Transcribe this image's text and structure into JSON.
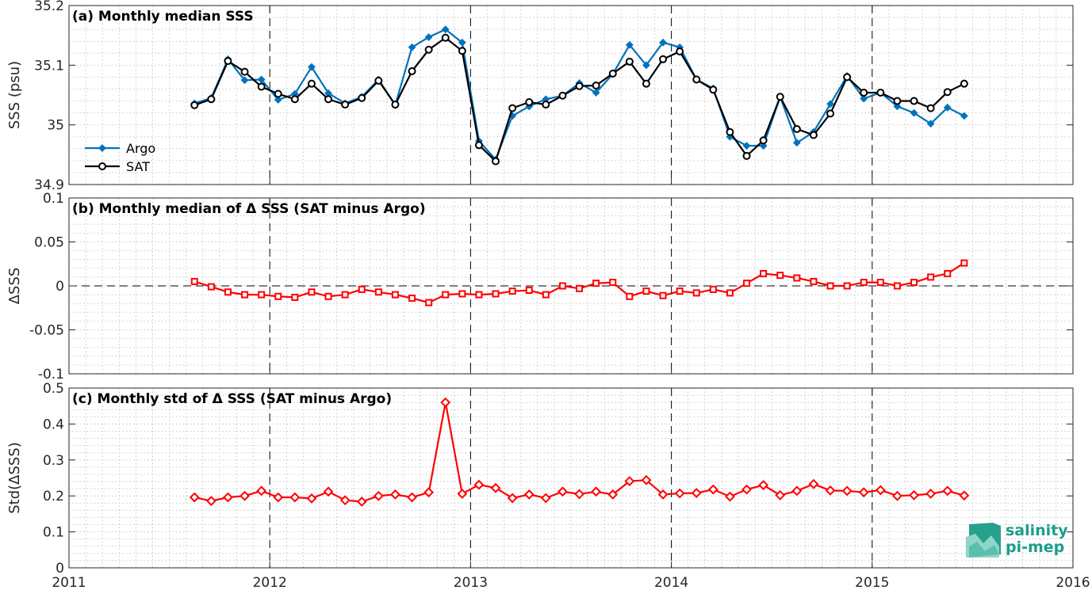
{
  "chart_data": [
    {
      "type": "line",
      "title": "(a) Monthly median SSS",
      "ylabel": "SSS (psu)",
      "xlim": [
        2011,
        2016
      ],
      "ylim": [
        34.9,
        35.2
      ],
      "yticks": [
        34.9,
        35,
        35.1,
        35.2
      ],
      "ytick_labels": [
        "34.9",
        "35",
        "35.1",
        "35.2"
      ],
      "grid": true,
      "legend": "bottom-left",
      "series": [
        {
          "name": "Argo",
          "color": "#0072bd",
          "marker": "diamond",
          "values": [
            35.036,
            35.045,
            35.11,
            35.075,
            35.076,
            35.042,
            35.052,
            35.097,
            35.053,
            35.036,
            35.047,
            35.076,
            35.033,
            35.13,
            35.147,
            35.16,
            35.138,
            34.973,
            34.942,
            35.015,
            35.031,
            35.043,
            35.049,
            35.07,
            35.054,
            35.085,
            35.134,
            35.1,
            35.138,
            35.13,
            35.076,
            35.061,
            34.98,
            34.965,
            34.965,
            35.047,
            34.97,
            34.988,
            35.035,
            35.082,
            35.044,
            35.054,
            35.031,
            35.02,
            35.002,
            35.029,
            35.015
          ]
        },
        {
          "name": "SAT",
          "color": "#000000",
          "marker": "circle",
          "values": [
            35.033,
            35.043,
            35.107,
            35.089,
            35.064,
            35.052,
            35.043,
            35.069,
            35.043,
            35.034,
            35.045,
            35.074,
            35.034,
            35.09,
            35.126,
            35.146,
            35.124,
            34.966,
            34.939,
            35.028,
            35.038,
            35.034,
            35.049,
            35.065,
            35.066,
            35.086,
            35.106,
            35.069,
            35.11,
            35.123,
            35.076,
            35.059,
            34.988,
            34.948,
            34.974,
            35.047,
            34.993,
            34.983,
            35.019,
            35.08,
            35.054,
            35.054,
            35.04,
            35.04,
            35.028,
            35.055,
            35.069
          ]
        }
      ]
    },
    {
      "type": "line",
      "title": "(b) Monthly median of Δ SSS (SAT minus Argo)",
      "ylabel": "ΔSSS",
      "xlim": [
        2011,
        2016
      ],
      "ylim": [
        -0.1,
        0.1
      ],
      "yticks": [
        -0.1,
        -0.05,
        0,
        0.05,
        0.1
      ],
      "ytick_labels": [
        "-0.1",
        "-0.05",
        "0",
        "0.05",
        "0.1"
      ],
      "grid": true,
      "reference_line": 0,
      "series": [
        {
          "name": "",
          "color": "#ff0000",
          "marker": "square",
          "values": [
            0.005,
            -0.001,
            -0.007,
            -0.01,
            -0.01,
            -0.012,
            -0.013,
            -0.007,
            -0.012,
            -0.01,
            -0.004,
            -0.007,
            -0.01,
            -0.014,
            -0.019,
            -0.01,
            -0.009,
            -0.01,
            -0.009,
            -0.006,
            -0.005,
            -0.01,
            0.0,
            -0.003,
            0.003,
            0.004,
            -0.012,
            -0.006,
            -0.011,
            -0.006,
            -0.008,
            -0.004,
            -0.008,
            0.003,
            0.014,
            0.012,
            0.009,
            0.005,
            0.0,
            0.0,
            0.004,
            0.004,
            0.0,
            0.004,
            0.01,
            0.014,
            0.026
          ]
        }
      ]
    },
    {
      "type": "line",
      "title": "(c) Monthly std of Δ SSS (SAT minus Argo)",
      "ylabel": "Std(ΔSSS)",
      "xlim": [
        2011,
        2016
      ],
      "ylim": [
        0,
        0.5
      ],
      "yticks": [
        0,
        0.1,
        0.2,
        0.3,
        0.4,
        0.5
      ],
      "ytick_labels": [
        "0",
        "0.1",
        "0.2",
        "0.3",
        "0.4",
        "0.5"
      ],
      "xticks": [
        2011,
        2012,
        2013,
        2014,
        2015,
        2016
      ],
      "xtick_labels": [
        "2011",
        "2012",
        "2013",
        "2014",
        "2015",
        "2016"
      ],
      "grid": true,
      "series": [
        {
          "name": "",
          "color": "#ff0000",
          "marker": "diamond",
          "values": [
            0.196,
            0.186,
            0.196,
            0.2,
            0.214,
            0.196,
            0.196,
            0.193,
            0.212,
            0.188,
            0.184,
            0.2,
            0.204,
            0.196,
            0.21,
            0.46,
            0.206,
            0.231,
            0.222,
            0.194,
            0.204,
            0.194,
            0.212,
            0.205,
            0.212,
            0.204,
            0.241,
            0.244,
            0.204,
            0.207,
            0.208,
            0.218,
            0.198,
            0.218,
            0.23,
            0.202,
            0.214,
            0.233,
            0.215,
            0.214,
            0.21,
            0.216,
            0.2,
            0.202,
            0.206,
            0.214,
            0.201
          ]
        }
      ]
    }
  ],
  "x_months": {
    "first_year": 2011,
    "first_month": 8,
    "count": 47
  },
  "logo": {
    "line1": "salinity",
    "line2": "pi-mep"
  }
}
